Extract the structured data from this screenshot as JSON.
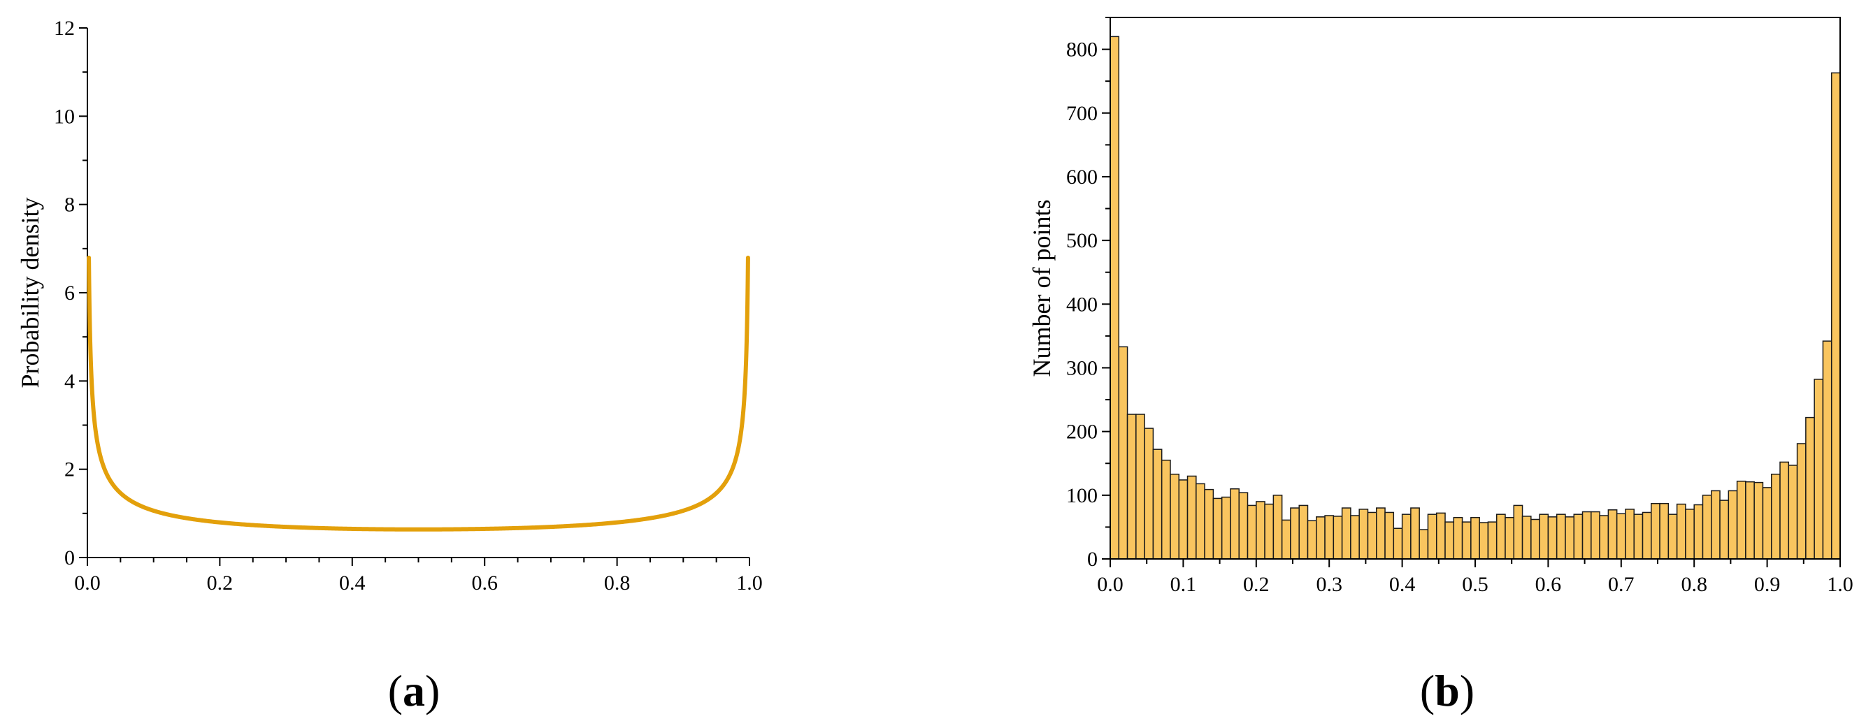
{
  "panels": [
    {
      "label_open": "(",
      "label_letter": "a",
      "label_close": ")"
    },
    {
      "label_open": "(",
      "label_letter": "b",
      "label_close": ")"
    }
  ],
  "chart_data": [
    {
      "type": "line",
      "panel": "a",
      "title": "",
      "xlabel": "",
      "ylabel": "Probability density",
      "xlim": [
        0.0,
        1.0
      ],
      "ylim": [
        0,
        12
      ],
      "xticks": [
        "0.0",
        "0.2",
        "0.4",
        "0.6",
        "0.8",
        "1.0"
      ],
      "yticks": [
        "0",
        "2",
        "4",
        "6",
        "8",
        "10",
        "12"
      ],
      "grid": false,
      "color": "#E3A00B",
      "series": [
        {
          "function": "1/(pi*sqrt(x*(1-x)))",
          "x_domain": [
            0.0022,
            0.9978
          ],
          "y_cap": 11.9
        }
      ]
    },
    {
      "type": "bar",
      "panel": "b",
      "title": "",
      "xlabel": "",
      "ylabel": "Number of points",
      "xlim": [
        0.0,
        1.0
      ],
      "ylim": [
        0,
        850
      ],
      "xticks": [
        "0.0",
        "0.1",
        "0.2",
        "0.3",
        "0.4",
        "0.5",
        "0.6",
        "0.7",
        "0.8",
        "0.9",
        "1.0"
      ],
      "yticks": [
        "0",
        "100",
        "200",
        "300",
        "400",
        "500",
        "600",
        "700",
        "800"
      ],
      "grid": false,
      "bin_width": 0.01,
      "fill": "#F9C55F",
      "edge": "#1a1a1a",
      "values": [
        820,
        333,
        227,
        227,
        205,
        172,
        155,
        133,
        124,
        130,
        118,
        109,
        95,
        97,
        110,
        104,
        84,
        90,
        86,
        100,
        61,
        80,
        84,
        60,
        66,
        68,
        67,
        80,
        68,
        78,
        73,
        80,
        73,
        48,
        70,
        80,
        46,
        70,
        72,
        58,
        65,
        58,
        65,
        57,
        58,
        70,
        65,
        84,
        67,
        62,
        70,
        66,
        70,
        66,
        70,
        74,
        74,
        68,
        77,
        71,
        78,
        70,
        73,
        87,
        87,
        70,
        86,
        78,
        85,
        100,
        107,
        92,
        107,
        122,
        121,
        120,
        112,
        133,
        152,
        147,
        181,
        222,
        282,
        342,
        763
      ]
    }
  ]
}
